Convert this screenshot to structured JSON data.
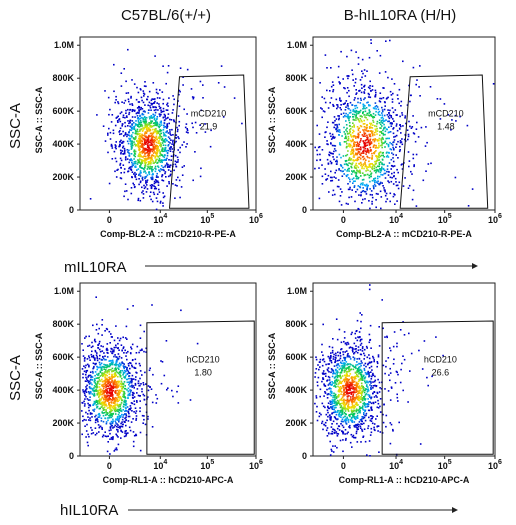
{
  "figure": {
    "column_titles": [
      "C57BL/6(+/+)",
      "B-hIL10RA (H/H)"
    ],
    "row_side_labels": [
      "SSC-A",
      "SSC-A"
    ],
    "row_arrow_labels": [
      "mIL10RA",
      "hIL10RA"
    ]
  },
  "chart_data": [
    {
      "type": "scatter",
      "name": "C57BL/6(+/+) mIL10RA",
      "xlabel": "Comp-BL2-A :: mCD210-R-PE-A",
      "ylabel": "SSC-A :: SSC-A",
      "x_scale": "biexponential",
      "x_ticks": [
        "0",
        "10^4",
        "10^5",
        "10^6"
      ],
      "y_ticks": [
        "0",
        "200K",
        "400K",
        "600K",
        "800K",
        "1.0M"
      ],
      "ylim": [
        0,
        1050000
      ],
      "gate": {
        "name": "mCD210",
        "percent": "21.9"
      },
      "population": {
        "center_x": 5000,
        "center_y": 400000,
        "spread": "medium",
        "color_scale": "pseudocolor density (blue-green-yellow-red)"
      }
    },
    {
      "type": "scatter",
      "name": "B-hIL10RA (H/H) mIL10RA",
      "xlabel": "Comp-BL2-A :: mCD210-R-PE-A",
      "ylabel": "SSC-A :: SSC-A",
      "x_scale": "biexponential",
      "x_ticks": [
        "0",
        "10^4",
        "10^5",
        "10^6"
      ],
      "y_ticks": [
        "0",
        "200K",
        "400K",
        "600K",
        "800K",
        "1.0M"
      ],
      "ylim": [
        0,
        1050000
      ],
      "gate": {
        "name": "mCD210",
        "percent": "1.48"
      },
      "population": {
        "center_x": 1500,
        "center_y": 400000,
        "spread": "wide",
        "color_scale": "pseudocolor density (blue-green-yellow-red)"
      }
    },
    {
      "type": "scatter",
      "name": "C57BL/6(+/+) hIL10RA",
      "xlabel": "Comp-RL1-A :: hCD210-APC-A",
      "ylabel": "SSC-A :: SSC-A",
      "x_scale": "biexponential",
      "x_ticks": [
        "0",
        "10^4",
        "10^5",
        "10^6"
      ],
      "y_ticks": [
        "0",
        "200K",
        "400K",
        "600K",
        "800K",
        "1.0M"
      ],
      "ylim": [
        0,
        1050000
      ],
      "gate": {
        "name": "hCD210",
        "percent": "1.80"
      },
      "population": {
        "center_x": 0,
        "center_y": 400000,
        "spread": "medium",
        "color_scale": "pseudocolor density (blue-green-yellow-red)"
      }
    },
    {
      "type": "scatter",
      "name": "B-hIL10RA (H/H) hIL10RA",
      "xlabel": "Comp-RL1-A :: hCD210-APC-A",
      "ylabel": "SSC-A :: SSC-A",
      "x_scale": "biexponential",
      "x_ticks": [
        "0",
        "10^4",
        "10^5",
        "10^6"
      ],
      "y_ticks": [
        "0",
        "200K",
        "400K",
        "600K",
        "800K",
        "1.0M"
      ],
      "ylim": [
        0,
        1050000
      ],
      "gate": {
        "name": "hCD210",
        "percent": "26.6"
      },
      "population": {
        "center_x": 300,
        "center_y": 400000,
        "spread": "medium",
        "color_scale": "pseudocolor density (blue-green-yellow-red)"
      }
    }
  ]
}
